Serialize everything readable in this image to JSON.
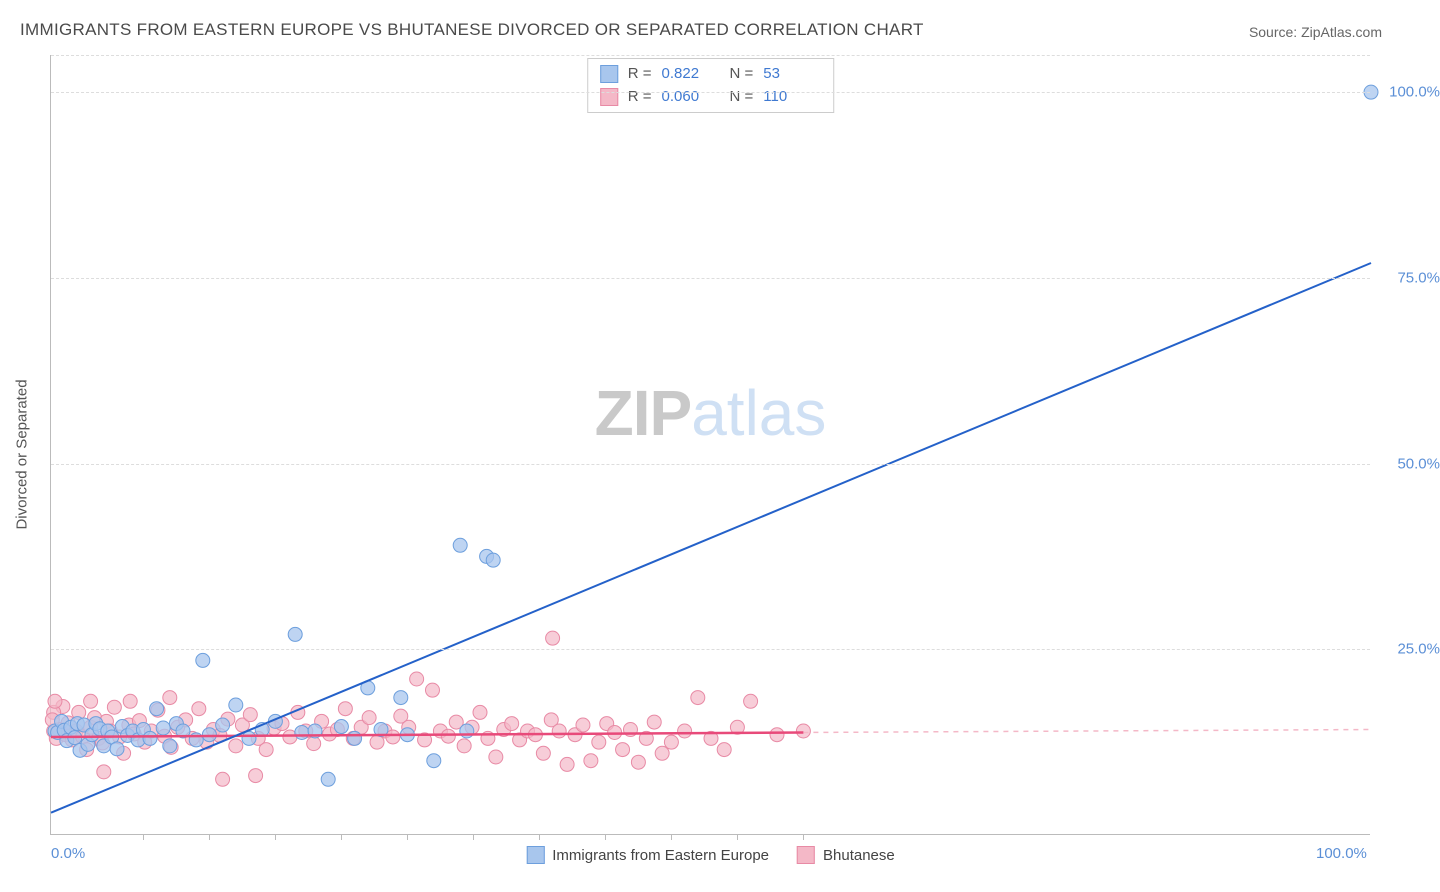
{
  "title": "IMMIGRANTS FROM EASTERN EUROPE VS BHUTANESE DIVORCED OR SEPARATED CORRELATION CHART",
  "source_label": "Source:",
  "source_name": "ZipAtlas.com",
  "ylabel": "Divorced or Separated",
  "watermark": {
    "part1": "ZIP",
    "part2": "atlas"
  },
  "chart": {
    "type": "scatter",
    "xlim": [
      0,
      100
    ],
    "ylim": [
      0,
      105
    ],
    "x_ticklabels": [
      {
        "v": 0,
        "label": "0.0%"
      },
      {
        "v": 100,
        "label": "100.0%"
      }
    ],
    "x_minor_ticks": [
      7,
      12,
      17,
      22,
      27,
      32,
      37,
      42,
      47,
      52,
      57
    ],
    "y_ticklabels": [
      {
        "v": 25,
        "label": "25.0%"
      },
      {
        "v": 50,
        "label": "50.0%"
      },
      {
        "v": 75,
        "label": "75.0%"
      },
      {
        "v": 100,
        "label": "100.0%"
      }
    ],
    "grid_color": "#dddddd",
    "axis_color": "#bbbbbb",
    "background_color": "#ffffff",
    "series": [
      {
        "id": "eastern",
        "name": "Immigrants from Eastern Europe",
        "color_fill": "#a8c6ed",
        "color_stroke": "#6d9fdd",
        "marker_radius": 7,
        "marker_opacity": 0.75,
        "R": "0.822",
        "N": "53",
        "trend": {
          "x1": 0,
          "y1": 3,
          "x2": 100,
          "y2": 77,
          "color": "#2461c9",
          "width": 2
        },
        "points": [
          [
            0.3,
            14
          ],
          [
            0.5,
            13.8
          ],
          [
            0.8,
            15.3
          ],
          [
            1,
            14.1
          ],
          [
            1.2,
            12.7
          ],
          [
            1.5,
            14.5
          ],
          [
            1.8,
            13.1
          ],
          [
            2,
            15.0
          ],
          [
            2.2,
            11.4
          ],
          [
            2.5,
            14.8
          ],
          [
            2.8,
            12.2
          ],
          [
            3.1,
            13.5
          ],
          [
            3.4,
            15.0
          ],
          [
            3.7,
            14.3
          ],
          [
            4.0,
            12.0
          ],
          [
            4.3,
            14.0
          ],
          [
            4.6,
            13.2
          ],
          [
            5.0,
            11.6
          ],
          [
            5.4,
            14.6
          ],
          [
            5.8,
            13.4
          ],
          [
            6.2,
            14.0
          ],
          [
            6.6,
            12.8
          ],
          [
            7.0,
            14.2
          ],
          [
            7.5,
            13.0
          ],
          [
            8.0,
            17.0
          ],
          [
            8.5,
            14.4
          ],
          [
            9.0,
            12.0
          ],
          [
            9.5,
            15.0
          ],
          [
            10,
            14
          ],
          [
            11,
            12.8
          ],
          [
            11.5,
            23.5
          ],
          [
            12,
            13.5
          ],
          [
            13,
            14.8
          ],
          [
            14,
            17.5
          ],
          [
            15,
            13.0
          ],
          [
            16,
            14.2
          ],
          [
            17,
            15.3
          ],
          [
            18.5,
            27.0
          ],
          [
            19,
            13.8
          ],
          [
            20,
            14.0
          ],
          [
            21,
            7.5
          ],
          [
            22,
            14.6
          ],
          [
            23,
            13.0
          ],
          [
            24,
            19.8
          ],
          [
            25,
            14.2
          ],
          [
            26.5,
            18.5
          ],
          [
            27,
            13.5
          ],
          [
            29,
            10.0
          ],
          [
            31,
            39.0
          ],
          [
            31.5,
            14
          ],
          [
            33,
            37.5
          ],
          [
            33.5,
            37.0
          ],
          [
            100,
            100
          ]
        ]
      },
      {
        "id": "bhutanese",
        "name": "Bhutanese",
        "color_fill": "#f4b8c7",
        "color_stroke": "#e88aa5",
        "marker_radius": 7,
        "marker_opacity": 0.7,
        "R": "0.060",
        "N": "110",
        "trend": {
          "x1": 0,
          "y1": 13.2,
          "x2": 57,
          "y2": 13.8,
          "color": "#e84a7a",
          "width": 2.5
        },
        "trend_dash": {
          "x1": 57,
          "y1": 13.8,
          "x2": 100,
          "y2": 14.2,
          "color": "#f4b8c7",
          "width": 1.5
        },
        "points": [
          [
            0.2,
            14
          ],
          [
            0.4,
            13
          ],
          [
            0.6,
            14.2
          ],
          [
            0.9,
            17.3
          ],
          [
            1.1,
            13.5
          ],
          [
            1.3,
            15.1
          ],
          [
            1.6,
            12.8
          ],
          [
            1.9,
            14.0
          ],
          [
            2.1,
            16.5
          ],
          [
            2.4,
            13.2
          ],
          [
            2.7,
            11.5
          ],
          [
            3.0,
            14.5
          ],
          [
            3.3,
            15.8
          ],
          [
            3.6,
            13.0
          ],
          [
            3.9,
            12.4
          ],
          [
            4.2,
            15.3
          ],
          [
            4.5,
            14.0
          ],
          [
            4.8,
            17.2
          ],
          [
            5.2,
            13.2
          ],
          [
            5.5,
            11.0
          ],
          [
            5.9,
            14.8
          ],
          [
            6.3,
            13.6
          ],
          [
            6.7,
            15.4
          ],
          [
            7.1,
            12.5
          ],
          [
            7.6,
            14.0
          ],
          [
            8.1,
            16.8
          ],
          [
            8.6,
            13.3
          ],
          [
            9.1,
            11.8
          ],
          [
            9.6,
            14.5
          ],
          [
            10.2,
            15.5
          ],
          [
            10.7,
            13.0
          ],
          [
            11.2,
            17.0
          ],
          [
            11.8,
            12.5
          ],
          [
            12.3,
            14.2
          ],
          [
            12.8,
            13.4
          ],
          [
            13.4,
            15.6
          ],
          [
            14.0,
            12.0
          ],
          [
            14.5,
            14.8
          ],
          [
            15.1,
            16.2
          ],
          [
            15.7,
            13.0
          ],
          [
            16.3,
            11.5
          ],
          [
            16.9,
            14.4
          ],
          [
            17.5,
            15.0
          ],
          [
            18.1,
            13.2
          ],
          [
            18.7,
            16.5
          ],
          [
            19.3,
            14.0
          ],
          [
            19.9,
            12.3
          ],
          [
            20.5,
            15.3
          ],
          [
            21.1,
            13.6
          ],
          [
            21.7,
            14.2
          ],
          [
            22.3,
            17.0
          ],
          [
            22.9,
            13.0
          ],
          [
            23.5,
            14.5
          ],
          [
            24.1,
            15.8
          ],
          [
            24.7,
            12.5
          ],
          [
            25.3,
            14.0
          ],
          [
            25.9,
            13.2
          ],
          [
            26.5,
            16.0
          ],
          [
            27.1,
            14.5
          ],
          [
            27.7,
            21.0
          ],
          [
            28.3,
            12.8
          ],
          [
            28.9,
            19.5
          ],
          [
            29.5,
            14.0
          ],
          [
            30.1,
            13.3
          ],
          [
            30.7,
            15.2
          ],
          [
            31.3,
            12.0
          ],
          [
            31.9,
            14.5
          ],
          [
            32.5,
            16.5
          ],
          [
            33.1,
            13.0
          ],
          [
            33.7,
            10.5
          ],
          [
            34.3,
            14.2
          ],
          [
            34.9,
            15.0
          ],
          [
            35.5,
            12.8
          ],
          [
            36.1,
            14.0
          ],
          [
            36.7,
            13.5
          ],
          [
            37.3,
            11.0
          ],
          [
            37.9,
            15.5
          ],
          [
            38.5,
            14.0
          ],
          [
            39.1,
            9.5
          ],
          [
            39.7,
            13.5
          ],
          [
            40.3,
            14.8
          ],
          [
            40.9,
            10.0
          ],
          [
            41.5,
            12.5
          ],
          [
            42.1,
            15.0
          ],
          [
            42.7,
            13.8
          ],
          [
            43.3,
            11.5
          ],
          [
            43.9,
            14.2
          ],
          [
            44.5,
            9.8
          ],
          [
            45.1,
            13.0
          ],
          [
            45.7,
            15.2
          ],
          [
            46.3,
            11.0
          ],
          [
            38,
            26.5
          ],
          [
            47,
            12.5
          ],
          [
            48,
            14.0
          ],
          [
            49,
            18.5
          ],
          [
            50,
            13.0
          ],
          [
            51,
            11.5
          ],
          [
            52,
            14.5
          ],
          [
            53,
            18.0
          ],
          [
            55,
            13.5
          ],
          [
            57,
            14.0
          ],
          [
            13,
            7.5
          ],
          [
            15.5,
            8.0
          ],
          [
            0.2,
            16.5
          ],
          [
            0.3,
            18
          ],
          [
            0.1,
            15.5
          ],
          [
            9,
            18.5
          ],
          [
            6,
            18
          ],
          [
            3,
            18
          ],
          [
            4,
            8.5
          ]
        ]
      }
    ]
  },
  "legend_top_labels": {
    "R": "R  =",
    "N": "N  ="
  },
  "legend_bottom": [
    {
      "series": "eastern"
    },
    {
      "series": "bhutanese"
    }
  ]
}
